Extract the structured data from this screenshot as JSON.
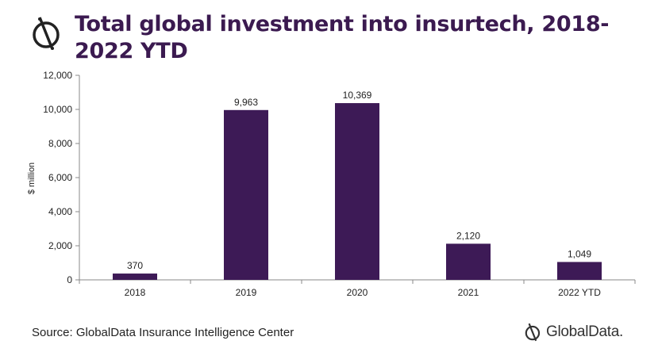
{
  "header": {
    "title": "Total global investment into insurtech, 2018-2022 YTD"
  },
  "footer": {
    "source": "Source: GlobalData Insurance Intelligence Center",
    "brand": "GlobalData."
  },
  "colors": {
    "bar": "#3d1a56",
    "title": "#3b1a50"
  },
  "chart_data": {
    "type": "bar",
    "title": "Total global investment into insurtech, 2018-2022 YTD",
    "xlabel": "",
    "ylabel": "$ million",
    "categories": [
      "2018",
      "2019",
      "2020",
      "2021",
      "2022 YTD"
    ],
    "values": [
      370,
      9963,
      10369,
      2120,
      1049
    ],
    "value_labels": [
      "370",
      "9,963",
      "10,369",
      "2,120",
      "1,049"
    ],
    "ylim": [
      0,
      12000
    ],
    "yticks": [
      0,
      2000,
      4000,
      6000,
      8000,
      10000,
      12000
    ],
    "ytick_labels": [
      "0",
      "2,000",
      "4,000",
      "6,000",
      "8,000",
      "10,000",
      "12,000"
    ],
    "grid": false,
    "legend": "none"
  }
}
